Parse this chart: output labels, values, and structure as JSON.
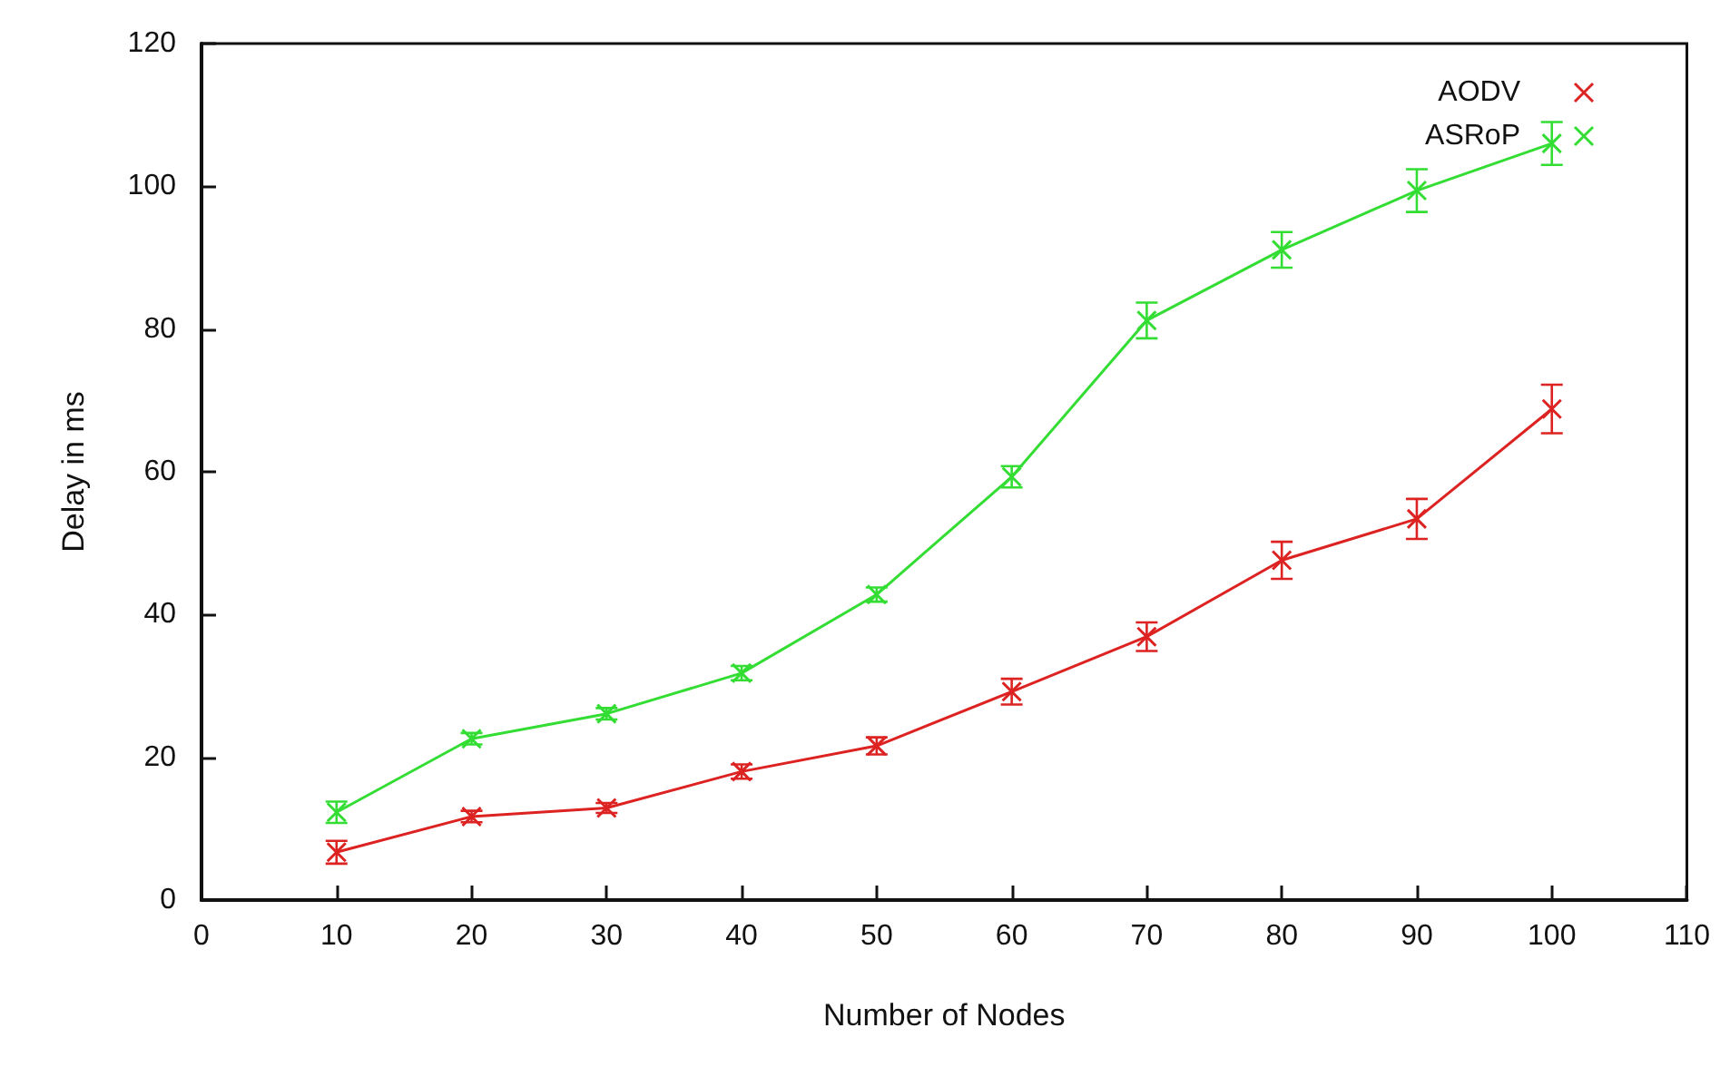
{
  "chart_data": {
    "type": "line",
    "xlabel": "Number of Nodes",
    "ylabel": "Delay in ms",
    "x": [
      10,
      20,
      30,
      40,
      50,
      60,
      70,
      80,
      90,
      100
    ],
    "series": [
      {
        "name": "AODV",
        "color": "#dd2222",
        "values": [
          6.7,
          11.7,
          12.9,
          18,
          21.6,
          29.2,
          36.9,
          47.6,
          53.4,
          68.8
        ],
        "errors": [
          1.6,
          0.8,
          0.7,
          1,
          1.2,
          1.8,
          2,
          2.6,
          2.8,
          3.4
        ]
      },
      {
        "name": "ASRoP",
        "color": "#33dd33",
        "values": [
          12.3,
          22.6,
          26.1,
          31.8,
          42.8,
          59.3,
          81.2,
          91.1,
          99.4,
          106
        ],
        "errors": [
          1.5,
          0.8,
          0.8,
          1,
          1,
          1.5,
          2.5,
          2.5,
          3,
          3
        ]
      }
    ],
    "xlim": [
      0,
      110
    ],
    "xticks": [
      0,
      10,
      20,
      30,
      40,
      50,
      60,
      70,
      80,
      90,
      100,
      110
    ],
    "ylim": [
      0,
      120
    ],
    "yticks": [
      0,
      20,
      40,
      60,
      80,
      100,
      120
    ],
    "grid": false,
    "legend": "top right",
    "marker": "cross",
    "line_style": "solid"
  }
}
